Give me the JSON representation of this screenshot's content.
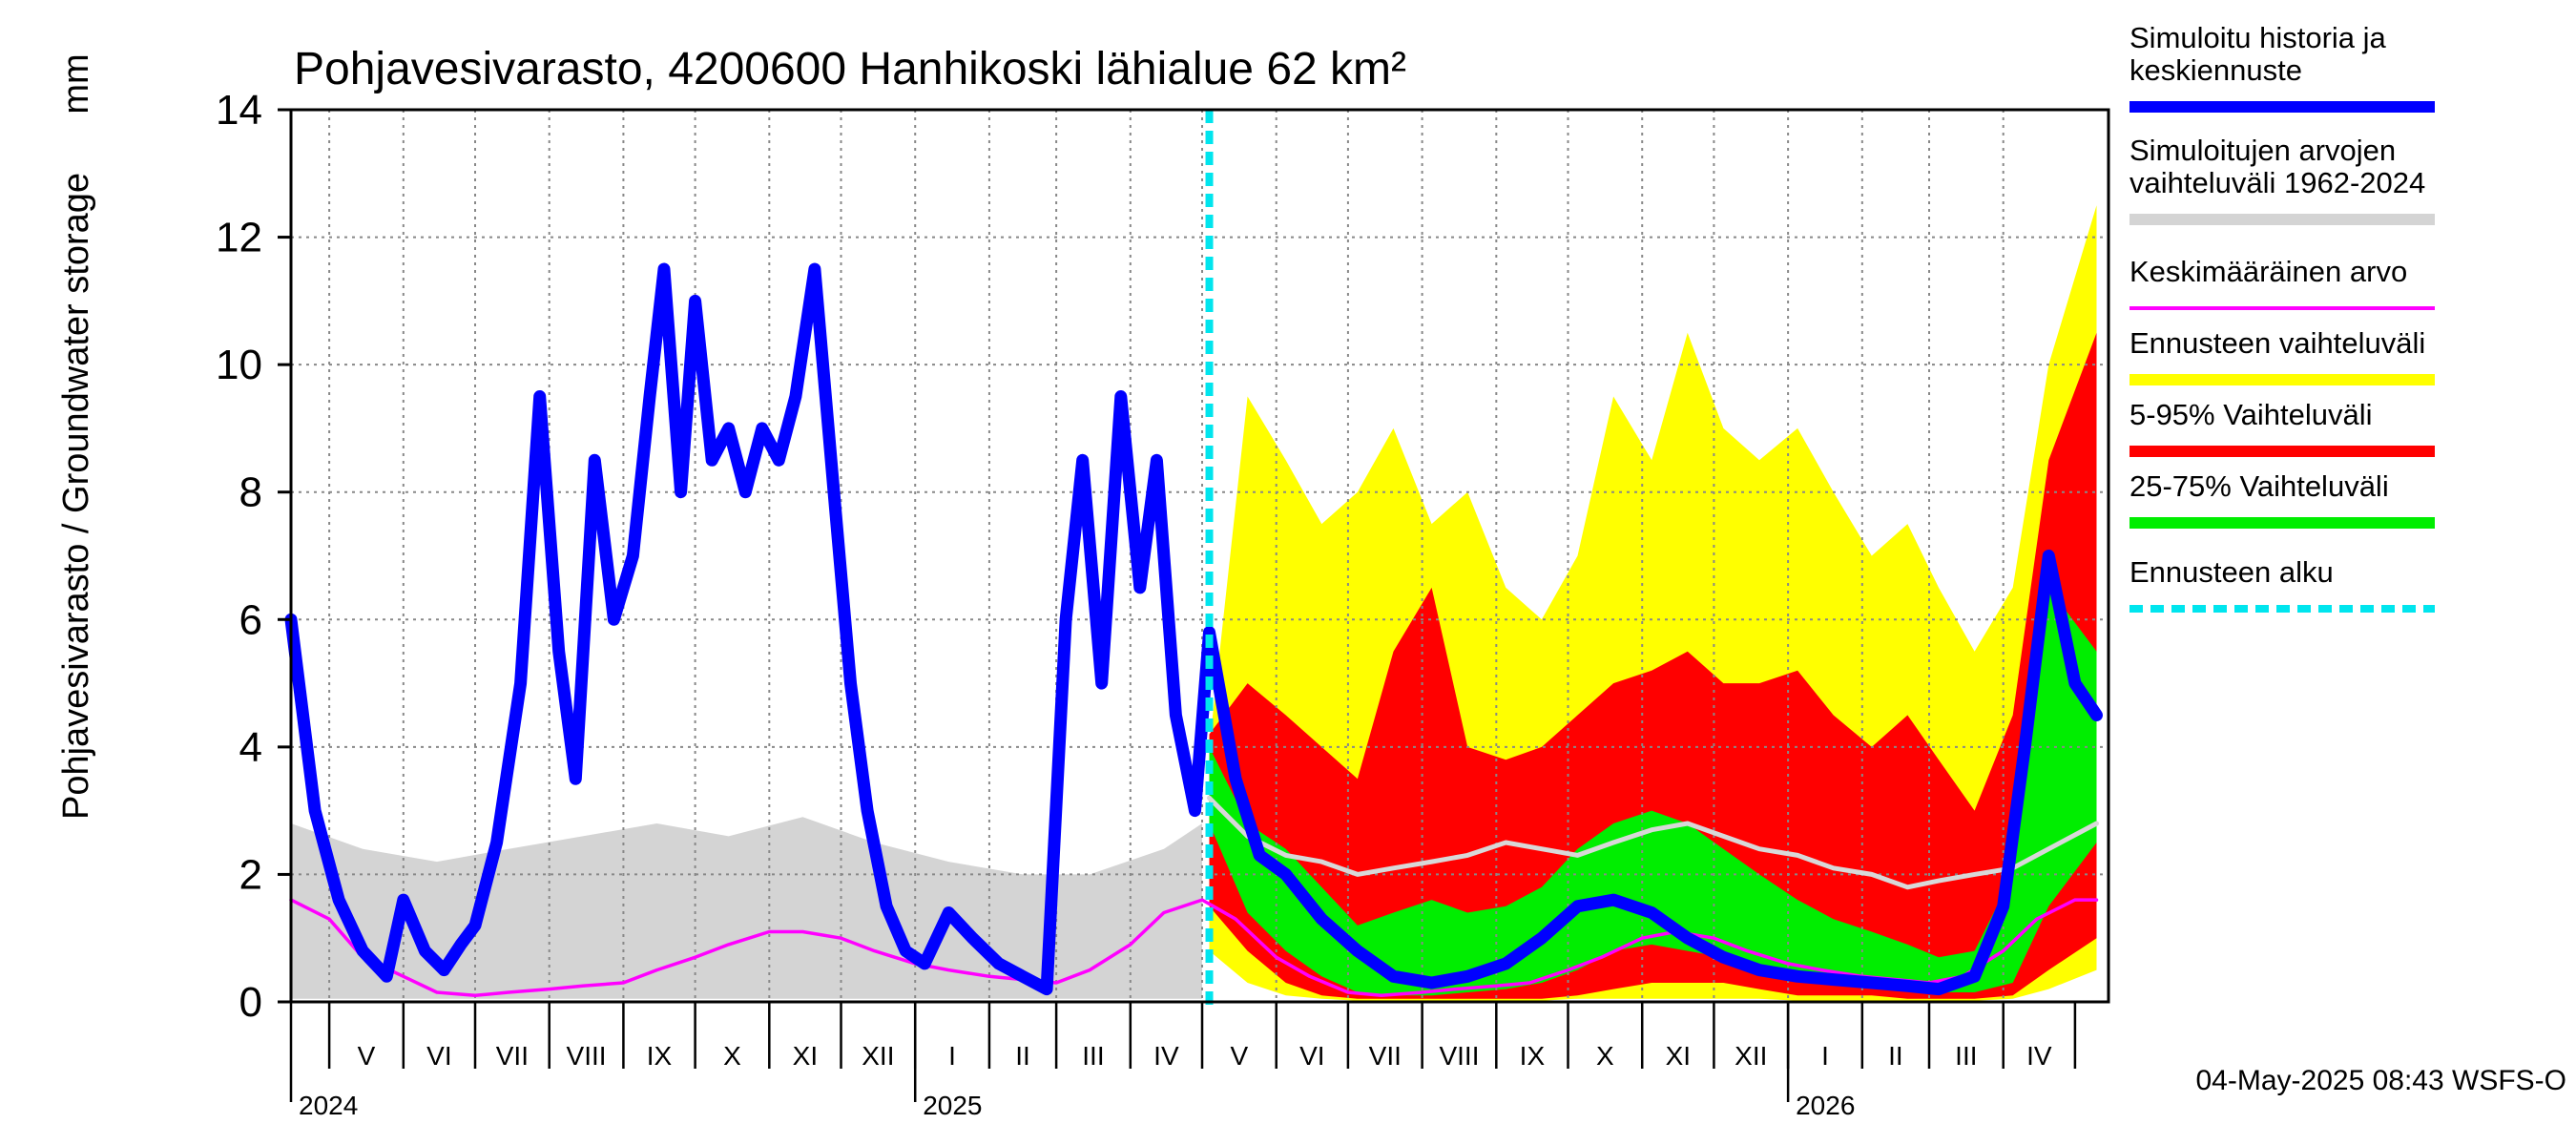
{
  "chart_data": {
    "type": "area",
    "title": "Pohjavesivarasto, 4200600 Hanhikoski lähialue 62 km²",
    "ylabel_left": "Pohjavesivarasto / Groundwater storage",
    "ylabel_unit": "mm",
    "ylim": [
      0,
      14
    ],
    "yticks": [
      "0",
      "2",
      "4",
      "6",
      "8",
      "10",
      "12",
      "14"
    ],
    "grid": "dotted",
    "x_start": "2024-04-15",
    "x_end": "2026-05-15",
    "forecast_start": "2025-05-04",
    "months": [
      {
        "label": "V",
        "start": "2024-05-01",
        "end": "2024-06-01"
      },
      {
        "label": "VI",
        "start": "2024-06-01",
        "end": "2024-07-01"
      },
      {
        "label": "VII",
        "start": "2024-07-01",
        "end": "2024-08-01"
      },
      {
        "label": "VIII",
        "start": "2024-08-01",
        "end": "2024-09-01"
      },
      {
        "label": "IX",
        "start": "2024-09-01",
        "end": "2024-10-01"
      },
      {
        "label": "X",
        "start": "2024-10-01",
        "end": "2024-11-01"
      },
      {
        "label": "XI",
        "start": "2024-11-01",
        "end": "2024-12-01"
      },
      {
        "label": "XII",
        "start": "2024-12-01",
        "end": "2025-01-01"
      },
      {
        "label": "I",
        "start": "2025-01-01",
        "end": "2025-02-01"
      },
      {
        "label": "II",
        "start": "2025-02-01",
        "end": "2025-03-01"
      },
      {
        "label": "III",
        "start": "2025-03-01",
        "end": "2025-04-01"
      },
      {
        "label": "IV",
        "start": "2025-04-01",
        "end": "2025-05-01"
      },
      {
        "label": "V",
        "start": "2025-05-01",
        "end": "2025-06-01"
      },
      {
        "label": "VI",
        "start": "2025-06-01",
        "end": "2025-07-01"
      },
      {
        "label": "VII",
        "start": "2025-07-01",
        "end": "2025-08-01"
      },
      {
        "label": "VIII",
        "start": "2025-08-01",
        "end": "2025-09-01"
      },
      {
        "label": "IX",
        "start": "2025-09-01",
        "end": "2025-10-01"
      },
      {
        "label": "X",
        "start": "2025-10-01",
        "end": "2025-11-01"
      },
      {
        "label": "XI",
        "start": "2025-11-01",
        "end": "2025-12-01"
      },
      {
        "label": "XII",
        "start": "2025-12-01",
        "end": "2026-01-01"
      },
      {
        "label": "I",
        "start": "2026-01-01",
        "end": "2026-02-01"
      },
      {
        "label": "II",
        "start": "2026-02-01",
        "end": "2026-03-01"
      },
      {
        "label": "III",
        "start": "2026-03-01",
        "end": "2026-04-01"
      },
      {
        "label": "IV",
        "start": "2026-04-01",
        "end": "2026-05-01"
      }
    ],
    "years": [
      {
        "label": "2024",
        "date": "2024-04-15"
      },
      {
        "label": "2025",
        "date": "2025-01-01"
      },
      {
        "label": "2026",
        "date": "2026-01-01"
      }
    ],
    "series": [
      {
        "name": "Simuloitujen arvojen vaihteluväli 1962-2024",
        "kind": "band",
        "color": "#d4d4d4",
        "x": [
          "2024-04-15",
          "2024-05-15",
          "2024-06-15",
          "2024-07-15",
          "2024-08-15",
          "2024-09-15",
          "2024-10-15",
          "2024-11-15",
          "2024-12-15",
          "2025-01-15",
          "2025-02-15",
          "2025-03-15",
          "2025-04-15",
          "2025-05-01"
        ],
        "low": [
          0.05,
          0.05,
          0.05,
          0.05,
          0.05,
          0.05,
          0.05,
          0.05,
          0.05,
          0.05,
          0.05,
          0.05,
          0.05,
          0.05
        ],
        "high": [
          2.8,
          2.4,
          2.2,
          2.4,
          2.6,
          2.8,
          2.6,
          2.9,
          2.5,
          2.2,
          2.0,
          2.0,
          2.4,
          2.8
        ]
      },
      {
        "name": "Ennusteen vaihteluväli",
        "kind": "band",
        "color": "#ffff00",
        "x": [
          "2025-05-04",
          "2025-05-20",
          "2025-06-05",
          "2025-06-20",
          "2025-07-05",
          "2025-07-20",
          "2025-08-05",
          "2025-08-20",
          "2025-09-05",
          "2025-09-20",
          "2025-10-05",
          "2025-10-20",
          "2025-11-05",
          "2025-11-20",
          "2025-12-05",
          "2025-12-20",
          "2026-01-05",
          "2026-01-20",
          "2026-02-05",
          "2026-02-20",
          "2026-03-05",
          "2026-03-20",
          "2026-04-05",
          "2026-04-20",
          "2026-05-10"
        ],
        "low": [
          0.8,
          0.3,
          0.1,
          0.05,
          0.02,
          0.02,
          0.02,
          0.02,
          0.02,
          0.02,
          0.05,
          0.05,
          0.05,
          0.05,
          0.05,
          0.05,
          0.02,
          0.02,
          0.02,
          0.02,
          0.02,
          0.02,
          0.05,
          0.2,
          0.5
        ],
        "high": [
          4.0,
          9.5,
          8.5,
          7.5,
          8.0,
          9.0,
          7.5,
          8.0,
          6.5,
          6.0,
          7.0,
          9.5,
          8.5,
          10.5,
          9.0,
          8.5,
          9.0,
          8.0,
          7.0,
          7.5,
          6.5,
          5.5,
          6.5,
          10.0,
          12.5
        ]
      },
      {
        "name": "5-95% Vaihteluväli",
        "kind": "band",
        "color": "#ff0000",
        "x": [
          "2025-05-04",
          "2025-05-20",
          "2025-06-05",
          "2025-06-20",
          "2025-07-05",
          "2025-07-20",
          "2025-08-05",
          "2025-08-20",
          "2025-09-05",
          "2025-09-20",
          "2025-10-05",
          "2025-10-20",
          "2025-11-05",
          "2025-11-20",
          "2025-12-05",
          "2025-12-20",
          "2026-01-05",
          "2026-01-20",
          "2026-02-05",
          "2026-02-20",
          "2026-03-05",
          "2026-03-20",
          "2026-04-05",
          "2026-04-20",
          "2026-05-10"
        ],
        "low": [
          1.5,
          0.8,
          0.3,
          0.1,
          0.05,
          0.05,
          0.05,
          0.05,
          0.05,
          0.05,
          0.1,
          0.2,
          0.3,
          0.3,
          0.3,
          0.2,
          0.1,
          0.1,
          0.1,
          0.05,
          0.05,
          0.05,
          0.1,
          0.5,
          1.0
        ],
        "high": [
          4.2,
          5.0,
          4.5,
          4.0,
          3.5,
          5.5,
          6.5,
          4.0,
          3.8,
          4.0,
          4.5,
          5.0,
          5.2,
          5.5,
          5.0,
          5.0,
          5.2,
          4.5,
          4.0,
          4.5,
          3.8,
          3.0,
          4.5,
          8.5,
          10.5
        ]
      },
      {
        "name": "25-75% Vaihteluväli",
        "kind": "band",
        "color": "#00ee00",
        "x": [
          "2025-05-04",
          "2025-05-20",
          "2025-06-05",
          "2025-06-20",
          "2025-07-05",
          "2025-07-20",
          "2025-08-05",
          "2025-08-20",
          "2025-09-05",
          "2025-09-20",
          "2025-10-05",
          "2025-10-20",
          "2025-11-05",
          "2025-11-20",
          "2025-12-05",
          "2025-12-20",
          "2026-01-05",
          "2026-01-20",
          "2026-02-05",
          "2026-02-20",
          "2026-03-05",
          "2026-03-20",
          "2026-04-05",
          "2026-04-20",
          "2026-05-10"
        ],
        "low": [
          2.8,
          1.4,
          0.8,
          0.4,
          0.15,
          0.1,
          0.1,
          0.15,
          0.2,
          0.3,
          0.5,
          0.8,
          0.9,
          0.8,
          0.7,
          0.5,
          0.4,
          0.3,
          0.25,
          0.2,
          0.15,
          0.15,
          0.3,
          1.5,
          2.5
        ],
        "high": [
          4.0,
          2.8,
          2.4,
          1.8,
          1.2,
          1.4,
          1.6,
          1.4,
          1.5,
          1.8,
          2.4,
          2.8,
          3.0,
          2.8,
          2.4,
          2.0,
          1.6,
          1.3,
          1.1,
          0.9,
          0.7,
          0.8,
          2.0,
          6.5,
          5.5
        ]
      },
      {
        "name": "Keskimääräinen arvo (ennustejakso)",
        "kind": "line",
        "color": "#d8d8d8",
        "x": [
          "2025-05-04",
          "2025-05-20",
          "2025-06-05",
          "2025-06-20",
          "2025-07-05",
          "2025-07-20",
          "2025-08-05",
          "2025-08-20",
          "2025-09-05",
          "2025-09-20",
          "2025-10-05",
          "2025-10-20",
          "2025-11-05",
          "2025-11-20",
          "2025-12-05",
          "2025-12-20",
          "2026-01-05",
          "2026-01-20",
          "2026-02-05",
          "2026-02-20",
          "2026-03-05",
          "2026-03-20",
          "2026-04-05",
          "2026-04-20",
          "2026-05-10"
        ],
        "y": [
          3.2,
          2.6,
          2.3,
          2.2,
          2.0,
          2.1,
          2.2,
          2.3,
          2.5,
          2.4,
          2.3,
          2.5,
          2.7,
          2.8,
          2.6,
          2.4,
          2.3,
          2.1,
          2.0,
          1.8,
          1.9,
          2.0,
          2.1,
          2.4,
          2.8
        ]
      },
      {
        "name": "Keskimääräinen arvo",
        "kind": "line",
        "color": "#ff00ff",
        "x": [
          "2024-04-15",
          "2024-05-01",
          "2024-05-15",
          "2024-06-01",
          "2024-06-15",
          "2024-07-01",
          "2024-07-15",
          "2024-08-01",
          "2024-08-15",
          "2024-09-01",
          "2024-09-15",
          "2024-10-01",
          "2024-10-15",
          "2024-11-01",
          "2024-11-15",
          "2024-12-01",
          "2024-12-15",
          "2025-01-01",
          "2025-01-15",
          "2025-02-01",
          "2025-02-15",
          "2025-03-01",
          "2025-03-15",
          "2025-04-01",
          "2025-04-15",
          "2025-05-01",
          "2025-05-15",
          "2025-06-01",
          "2025-06-15",
          "2025-07-01",
          "2025-07-15",
          "2025-08-01",
          "2025-08-15",
          "2025-09-01",
          "2025-09-15",
          "2025-10-01",
          "2025-10-15",
          "2025-11-01",
          "2025-11-15",
          "2025-12-01",
          "2025-12-15",
          "2026-01-01",
          "2026-01-15",
          "2026-02-01",
          "2026-02-15",
          "2026-03-01",
          "2026-03-15",
          "2026-04-01",
          "2026-04-15",
          "2026-05-01",
          "2026-05-10"
        ],
        "y": [
          1.6,
          1.3,
          0.7,
          0.4,
          0.15,
          0.1,
          0.15,
          0.2,
          0.25,
          0.3,
          0.5,
          0.7,
          0.9,
          1.1,
          1.1,
          1.0,
          0.8,
          0.6,
          0.5,
          0.4,
          0.35,
          0.3,
          0.5,
          0.9,
          1.4,
          1.6,
          1.3,
          0.7,
          0.4,
          0.15,
          0.1,
          0.15,
          0.2,
          0.25,
          0.3,
          0.5,
          0.7,
          1.0,
          1.1,
          1.0,
          0.8,
          0.6,
          0.5,
          0.4,
          0.35,
          0.3,
          0.4,
          0.8,
          1.3,
          1.6,
          1.6
        ]
      },
      {
        "name": "Simuloitu historia ja keskiennuste",
        "kind": "thickline",
        "color": "#0000ff",
        "x": [
          "2024-04-15",
          "2024-04-25",
          "2024-05-05",
          "2024-05-15",
          "2024-05-25",
          "2024-06-01",
          "2024-06-10",
          "2024-06-18",
          "2024-06-25",
          "2024-07-01",
          "2024-07-10",
          "2024-07-20",
          "2024-07-28",
          "2024-08-05",
          "2024-08-12",
          "2024-08-20",
          "2024-08-28",
          "2024-09-05",
          "2024-09-12",
          "2024-09-18",
          "2024-09-25",
          "2024-10-01",
          "2024-10-08",
          "2024-10-15",
          "2024-10-22",
          "2024-10-29",
          "2024-11-05",
          "2024-11-12",
          "2024-11-20",
          "2024-11-28",
          "2024-12-05",
          "2024-12-12",
          "2024-12-20",
          "2024-12-28",
          "2025-01-05",
          "2025-01-15",
          "2025-01-25",
          "2025-02-05",
          "2025-02-15",
          "2025-02-25",
          "2025-03-05",
          "2025-03-12",
          "2025-03-20",
          "2025-03-28",
          "2025-04-05",
          "2025-04-12",
          "2025-04-20",
          "2025-04-28",
          "2025-05-04",
          "2025-05-15",
          "2025-05-25",
          "2025-06-05",
          "2025-06-20",
          "2025-07-05",
          "2025-07-20",
          "2025-08-05",
          "2025-08-20",
          "2025-09-05",
          "2025-09-20",
          "2025-10-05",
          "2025-10-20",
          "2025-11-05",
          "2025-11-20",
          "2025-12-05",
          "2025-12-20",
          "2026-01-05",
          "2026-01-20",
          "2026-02-05",
          "2026-02-20",
          "2026-03-05",
          "2026-03-20",
          "2026-04-01",
          "2026-04-10",
          "2026-04-20",
          "2026-05-01",
          "2026-05-10"
        ],
        "y": [
          6.0,
          3.0,
          1.6,
          0.8,
          0.4,
          1.6,
          0.8,
          0.5,
          0.9,
          1.2,
          2.5,
          5.0,
          9.5,
          5.5,
          3.5,
          8.5,
          6.0,
          7.0,
          9.5,
          11.5,
          8.0,
          11.0,
          8.5,
          9.0,
          8.0,
          9.0,
          8.5,
          9.5,
          11.5,
          8.0,
          5.0,
          3.0,
          1.5,
          0.8,
          0.6,
          1.4,
          1.0,
          0.6,
          0.4,
          0.2,
          6.0,
          8.5,
          5.0,
          9.5,
          6.5,
          8.5,
          4.5,
          3.0,
          5.8,
          3.5,
          2.3,
          2.0,
          1.3,
          0.8,
          0.4,
          0.3,
          0.4,
          0.6,
          1.0,
          1.5,
          1.6,
          1.4,
          1.0,
          0.7,
          0.5,
          0.4,
          0.35,
          0.3,
          0.25,
          0.2,
          0.4,
          1.5,
          4.0,
          7.0,
          5.0,
          4.5
        ]
      },
      {
        "name": "Ennusteen alku",
        "kind": "vline",
        "color": "#00e5ee",
        "x": "2025-05-04"
      }
    ]
  },
  "legend": {
    "items": [
      {
        "label": "Simuloitu historia ja keskiennuste",
        "color": "#0000ff",
        "style": "thick"
      },
      {
        "label": "Simuloitujen arvojen vaihteluväli 1962-2024",
        "color": "#d4d4d4",
        "style": "thick"
      },
      {
        "label": "Keskimääräinen arvo",
        "color": "#ff00ff",
        "style": "thin"
      },
      {
        "label": "Ennusteen vaihteluväli",
        "color": "#ffff00",
        "style": "thick"
      },
      {
        "label": "5-95% Vaihteluväli",
        "color": "#ff0000",
        "style": "thick"
      },
      {
        "label": "25-75% Vaihteluväli",
        "color": "#00ee00",
        "style": "thick"
      },
      {
        "label": "Ennusteen alku",
        "color": "#00e5ee",
        "style": "dashed"
      }
    ]
  },
  "footer": {
    "timestamp": "04-May-2025 08:43 WSFS-O"
  }
}
